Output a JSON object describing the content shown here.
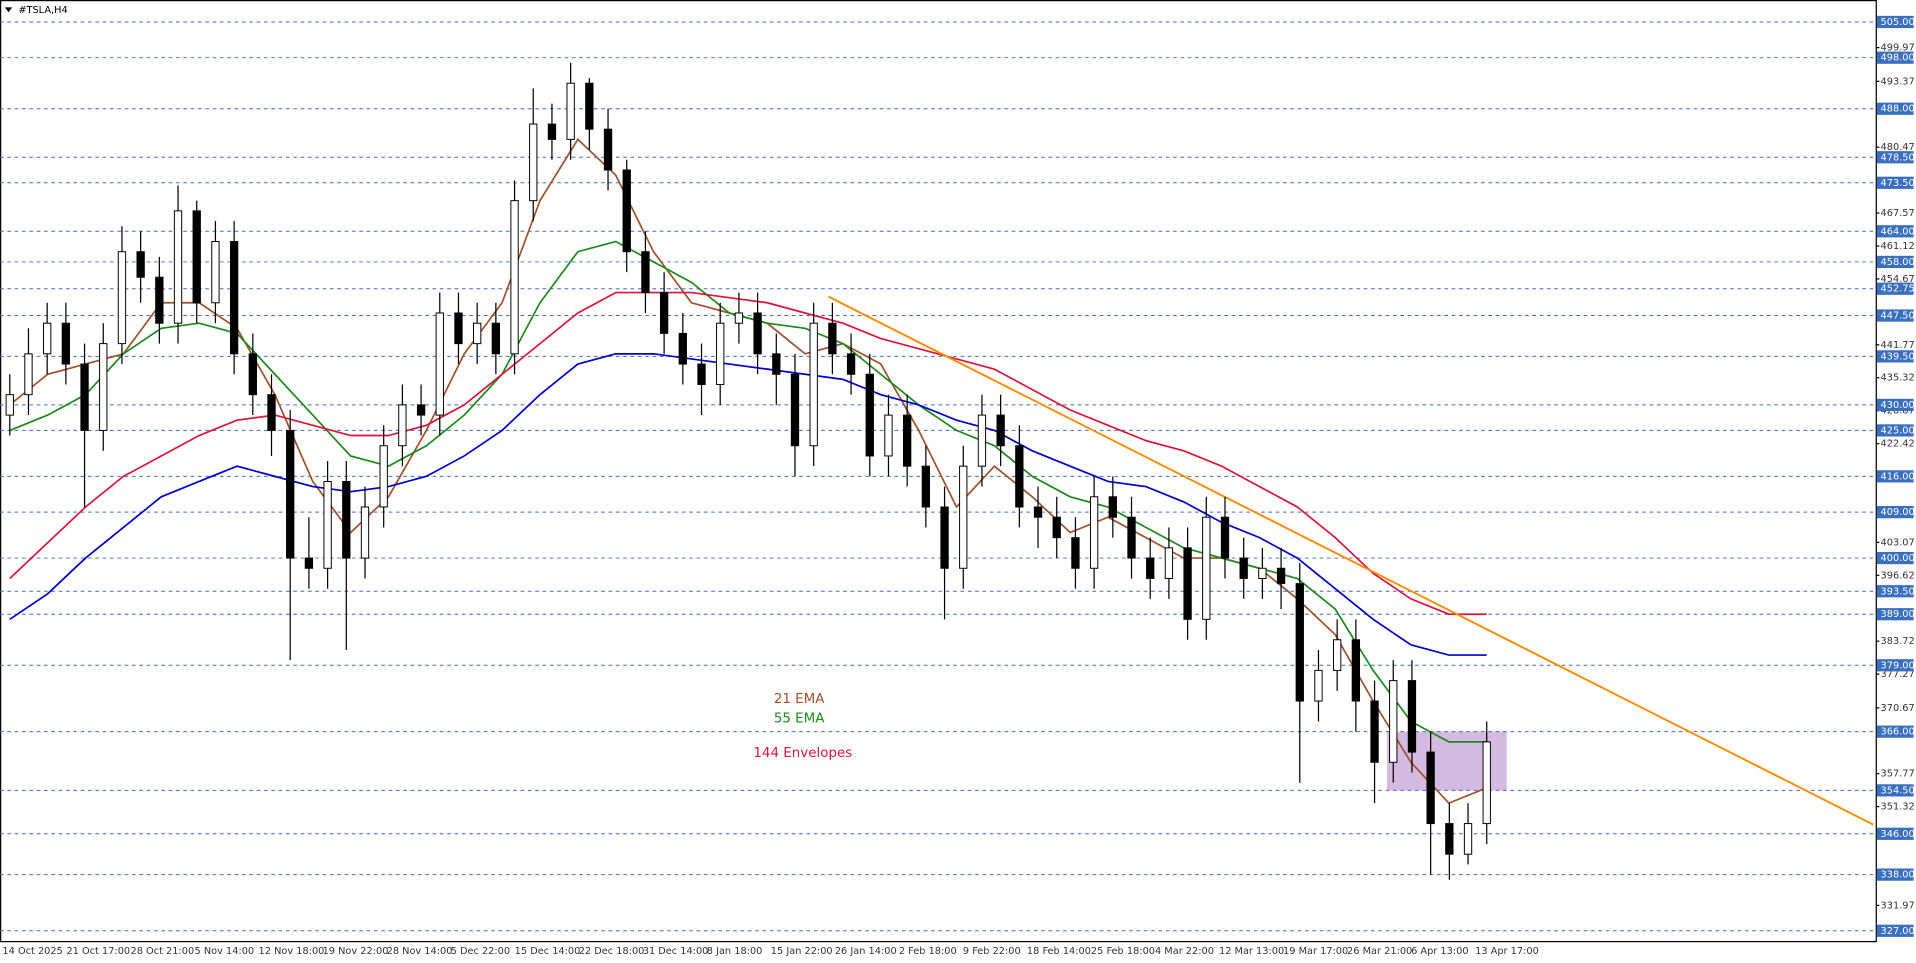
{
  "chart_data": {
    "type": "candlestick",
    "title": "#TSLA,H4",
    "xlabels": [
      "14 Oct 2025",
      "21 Oct 17:00",
      "28 Oct 21:00",
      "5 Nov 14:00",
      "12 Nov 18:00",
      "19 Nov 22:00",
      "28 Nov 14:00",
      "5 Dec 22:00",
      "15 Dec 14:00",
      "22 Dec 18:00",
      "31 Dec 14:00",
      "8 Jan 18:00",
      "15 Jan 22:00",
      "26 Jan 14:00",
      "2 Feb 18:00",
      "9 Feb 22:00",
      "18 Feb 14:00",
      "25 Feb 18:00",
      "4 Mar 22:00",
      "12 Mar 13:00",
      "19 Mar 17:00",
      "26 Mar 21:00",
      "6 Apr 13:00",
      "13 Apr 17:00"
    ],
    "open": [
      428,
      432,
      440,
      446,
      438,
      425,
      442,
      460,
      455,
      446,
      468,
      450,
      462,
      440,
      432,
      425,
      400,
      398,
      415,
      400,
      410,
      422,
      430,
      428,
      448,
      442,
      446,
      440,
      470,
      485,
      482,
      493,
      484,
      476,
      460,
      452,
      444,
      438,
      434,
      446,
      448,
      440,
      436,
      422,
      446,
      440,
      436,
      420,
      428,
      418,
      410,
      398,
      418,
      428,
      422,
      410,
      408,
      404,
      398,
      412,
      408,
      400,
      396,
      402,
      388,
      408,
      400,
      396,
      398,
      395,
      372,
      378,
      384,
      372,
      360,
      376,
      362,
      348,
      342,
      348
    ],
    "close": [
      432,
      440,
      446,
      438,
      425,
      442,
      460,
      455,
      446,
      468,
      450,
      462,
      440,
      432,
      425,
      400,
      398,
      415,
      400,
      410,
      422,
      430,
      428,
      448,
      442,
      446,
      440,
      470,
      485,
      482,
      493,
      484,
      476,
      460,
      452,
      444,
      438,
      434,
      446,
      448,
      440,
      436,
      422,
      446,
      440,
      436,
      420,
      428,
      418,
      410,
      398,
      418,
      428,
      422,
      410,
      408,
      404,
      398,
      412,
      408,
      400,
      396,
      402,
      388,
      408,
      400,
      396,
      398,
      395,
      372,
      378,
      384,
      372,
      360,
      376,
      362,
      348,
      342,
      348,
      364
    ],
    "high": [
      436,
      445,
      450,
      450,
      442,
      446,
      465,
      464,
      459,
      473,
      470,
      466,
      466,
      444,
      436,
      429,
      408,
      419,
      419,
      414,
      426,
      434,
      434,
      452,
      452,
      450,
      450,
      474,
      492,
      489,
      497,
      494,
      488,
      478,
      464,
      456,
      448,
      442,
      450,
      452,
      452,
      444,
      440,
      450,
      450,
      444,
      440,
      432,
      432,
      422,
      414,
      422,
      432,
      432,
      426,
      414,
      412,
      408,
      416,
      416,
      412,
      404,
      406,
      406,
      412,
      412,
      404,
      402,
      402,
      399,
      382,
      388,
      388,
      376,
      380,
      380,
      366,
      352,
      352,
      368
    ],
    "low": [
      424,
      428,
      436,
      434,
      410,
      421,
      438,
      450,
      442,
      442,
      446,
      446,
      436,
      428,
      420,
      380,
      394,
      394,
      382,
      396,
      406,
      418,
      424,
      424,
      438,
      438,
      436,
      436,
      466,
      478,
      478,
      480,
      472,
      456,
      448,
      440,
      434,
      428,
      430,
      442,
      436,
      430,
      416,
      418,
      436,
      432,
      416,
      416,
      414,
      406,
      388,
      394,
      414,
      418,
      406,
      402,
      400,
      394,
      394,
      404,
      396,
      392,
      392,
      384,
      384,
      396,
      392,
      392,
      390,
      356,
      368,
      374,
      366,
      352,
      356,
      358,
      338,
      337,
      340,
      344
    ],
    "series": [
      {
        "name": "21 EMA",
        "color": "#a0522d",
        "values": [
          430,
          436,
          438,
          440,
          450,
          450,
          445,
          432,
          415,
          405,
          412,
          425,
          440,
          450,
          470,
          482,
          475,
          460,
          450,
          448,
          446,
          440,
          442,
          438,
          425,
          410,
          418,
          412,
          405,
          408,
          404,
          400,
          400,
          398,
          392,
          385,
          372,
          360,
          352,
          355
        ]
      },
      {
        "name": "55 EMA",
        "color": "#1a8a1a",
        "values": [
          425,
          428,
          432,
          440,
          445,
          446,
          444,
          436,
          428,
          420,
          418,
          422,
          428,
          436,
          450,
          460,
          462,
          458,
          454,
          448,
          446,
          445,
          442,
          436,
          430,
          425,
          422,
          416,
          412,
          410,
          406,
          402,
          400,
          398,
          396,
          390,
          378,
          368,
          364,
          364
        ]
      },
      {
        "name": "144 Envelopes",
        "color": "#dc143c",
        "values": [
          396,
          403,
          410,
          416,
          420,
          424,
          427,
          428,
          426,
          424,
          424,
          426,
          430,
          436,
          442,
          448,
          452,
          452,
          452,
          451,
          450,
          448,
          446,
          443,
          441,
          439,
          437,
          433,
          429,
          426,
          423,
          421,
          418,
          414,
          410,
          404,
          397,
          392,
          389,
          389
        ]
      },
      {
        "color": "#0000cd",
        "values": [
          388,
          393,
          400,
          406,
          412,
          415,
          418,
          416,
          414,
          413,
          414,
          416,
          420,
          425,
          432,
          438,
          440,
          440,
          439,
          438,
          437,
          436,
          435,
          432,
          430,
          427,
          425,
          421,
          418,
          415,
          414,
          411,
          407,
          404,
          400,
          394,
          388,
          383,
          381,
          381
        ]
      }
    ],
    "ylim": [
      325,
      509.3
    ],
    "yticks": [
      499.97,
      493.37,
      480.47,
      467.57,
      461.12,
      454.67,
      441.77,
      435.32,
      428.87,
      422.42,
      403.07,
      396.62,
      383.72,
      377.27,
      370.67,
      357.77,
      351.32,
      331.97
    ],
    "levels": [
      {
        "value": 505,
        "label": "505.00"
      },
      {
        "value": 498,
        "label": "498.00"
      },
      {
        "value": 488,
        "label": "488.00"
      },
      {
        "value": 478.5,
        "label": "478.50"
      },
      {
        "value": 473.5,
        "label": "473.50"
      },
      {
        "value": 464,
        "label": "464.00"
      },
      {
        "value": 458,
        "label": "458.00"
      },
      {
        "value": 452.75,
        "label": "452.75"
      },
      {
        "value": 447.5,
        "label": "447.50"
      },
      {
        "value": 439.5,
        "label": "439.50"
      },
      {
        "value": 430,
        "label": "430.00"
      },
      {
        "value": 425,
        "label": "425.00"
      },
      {
        "value": 416,
        "label": "416.00"
      },
      {
        "value": 409,
        "label": "409.00"
      },
      {
        "value": 400,
        "label": "400.00"
      },
      {
        "value": 393.5,
        "label": "393.50"
      },
      {
        "value": 389,
        "label": "389.00"
      },
      {
        "value": 379,
        "label": "379.00"
      },
      {
        "value": 366,
        "label": "366.00"
      },
      {
        "value": 354.5,
        "label": "354.50"
      },
      {
        "value": 346,
        "label": "346.00"
      },
      {
        "value": 338,
        "label": "338.00"
      },
      {
        "value": 327,
        "label": "327.00"
      }
    ],
    "trendline": {
      "color": "#ff8c00",
      "start": 451.2,
      "end": 347.8
    },
    "zone": {
      "top": 366,
      "bottom": 354.5,
      "color": "#c9a8d8"
    },
    "annotations": [
      {
        "text": "21 EMA",
        "color": "#a0522d"
      },
      {
        "text": "55 EMA",
        "color": "#1a8a1a"
      },
      {
        "text": "144 Envelopes",
        "color": "#dc143c"
      }
    ]
  }
}
